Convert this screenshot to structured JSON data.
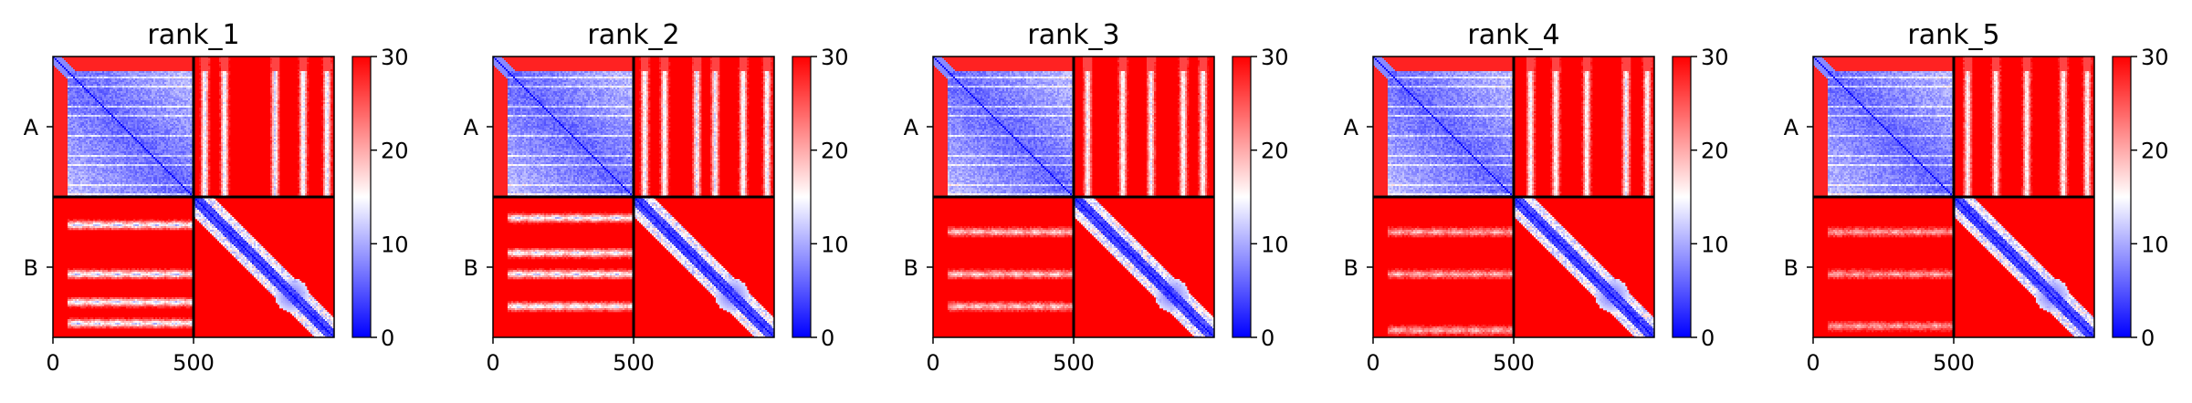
{
  "chart_data": [
    {
      "type": "heatmap",
      "title": "rank_1",
      "ytick_labels": [
        "A",
        "B"
      ],
      "xticks": [
        0,
        500
      ],
      "xlim": [
        0,
        1000
      ],
      "chain_boundary": 500,
      "colorbar": {
        "ticks": [
          0,
          10,
          20,
          30
        ],
        "range": [
          0,
          30
        ],
        "colormap": "bwr",
        "low_color": "#0000ff",
        "mid_color": "#ffffff",
        "high_color": "#ff0000"
      },
      "grid": false,
      "ab_bars": [
        0.08,
        0.22,
        0.58,
        0.78,
        0.95
      ],
      "ab_offband": 0.25,
      "ba_rows": [
        0.2,
        0.55,
        0.75,
        0.9
      ],
      "ba_strength": 1.0
    },
    {
      "type": "heatmap",
      "title": "rank_2",
      "ytick_labels": [
        "A",
        "B"
      ],
      "xticks": [
        0,
        500
      ],
      "xlim": [
        0,
        1000
      ],
      "chain_boundary": 500,
      "colorbar": {
        "ticks": [
          0,
          10,
          20,
          30
        ],
        "range": [
          0,
          30
        ],
        "colormap": "bwr",
        "low_color": "#0000ff",
        "mid_color": "#ffffff",
        "high_color": "#ff0000"
      },
      "grid": false,
      "ab_bars": [
        0.08,
        0.22,
        0.45,
        0.58,
        0.78,
        0.95
      ],
      "ab_offband": 0.2,
      "ba_rows": [
        0.15,
        0.4,
        0.55,
        0.78
      ],
      "ba_strength": 0.95
    },
    {
      "type": "heatmap",
      "title": "rank_3",
      "ytick_labels": [
        "A",
        "B"
      ],
      "xticks": [
        0,
        500
      ],
      "xlim": [
        0,
        1000
      ],
      "chain_boundary": 500,
      "colorbar": {
        "ticks": [
          0,
          10,
          20,
          30
        ],
        "range": [
          0,
          30
        ],
        "colormap": "bwr",
        "low_color": "#0000ff",
        "mid_color": "#ffffff",
        "high_color": "#ff0000"
      },
      "grid": false,
      "ab_bars": [
        0.1,
        0.35,
        0.55,
        0.78,
        0.92
      ],
      "ab_offband": 0.15,
      "ba_rows": [
        0.25,
        0.55,
        0.78
      ],
      "ba_strength": 0.7
    },
    {
      "type": "heatmap",
      "title": "rank_4",
      "ytick_labels": [
        "A",
        "B"
      ],
      "xticks": [
        0,
        500
      ],
      "xlim": [
        0,
        1000
      ],
      "chain_boundary": 500,
      "colorbar": {
        "ticks": [
          0,
          10,
          20,
          30
        ],
        "range": [
          0,
          30
        ],
        "colormap": "bwr",
        "low_color": "#0000ff",
        "mid_color": "#ffffff",
        "high_color": "#ff0000"
      },
      "grid": false,
      "ab_bars": [
        0.12,
        0.3,
        0.52,
        0.8,
        0.95
      ],
      "ab_offband": 0.15,
      "ba_rows": [
        0.25,
        0.55,
        0.95
      ],
      "ba_strength": 0.6
    },
    {
      "type": "heatmap",
      "title": "rank_5",
      "ytick_labels": [
        "A",
        "B"
      ],
      "xticks": [
        0,
        500
      ],
      "xlim": [
        0,
        1000
      ],
      "chain_boundary": 500,
      "colorbar": {
        "ticks": [
          0,
          10,
          20,
          30
        ],
        "range": [
          0,
          30
        ],
        "colormap": "bwr",
        "low_color": "#0000ff",
        "mid_color": "#ffffff",
        "high_color": "#ff0000"
      },
      "grid": false,
      "ab_bars": [
        0.1,
        0.3,
        0.52,
        0.78,
        0.95
      ],
      "ab_offband": 0.12,
      "ba_rows": [
        0.25,
        0.55,
        0.92
      ],
      "ba_strength": 0.55
    }
  ]
}
